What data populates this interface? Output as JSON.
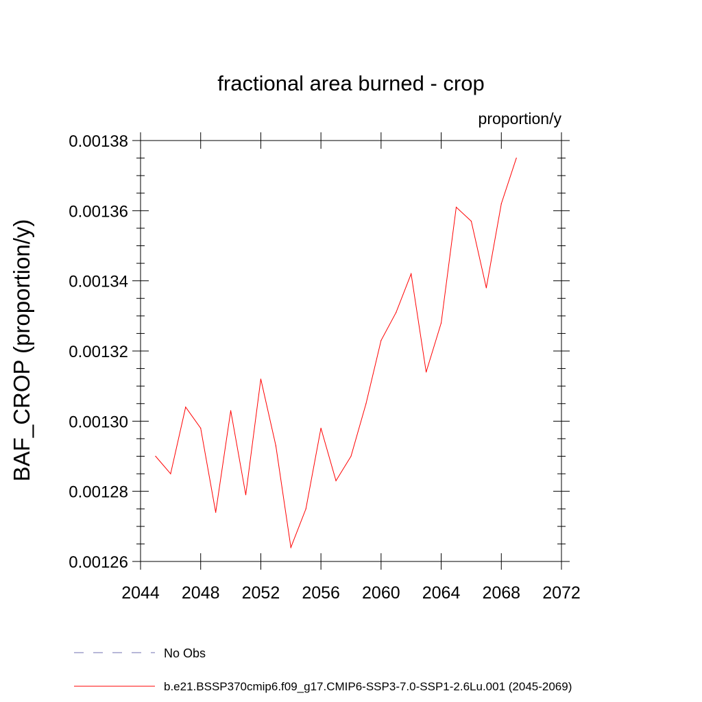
{
  "chart_data": {
    "type": "line",
    "title": "fractional area burned - crop",
    "units_label": "proportion/y",
    "ylabel": "BAF_CROP  (proportion/y)",
    "xlabel": "",
    "xlim": [
      2044,
      2072
    ],
    "ylim": [
      0.00126,
      0.00138
    ],
    "x_ticks": [
      "2044",
      "2048",
      "2052",
      "2056",
      "2060",
      "2064",
      "2068",
      "2072"
    ],
    "y_ticks": [
      "0.00126",
      "0.00128",
      "0.00130",
      "0.00132",
      "0.00134",
      "0.00136",
      "0.00138"
    ],
    "series": [
      {
        "name": "b.e21.BSSP370cmip6.f09_g17.CMIP6-SSP3-7.0-SSP1-2.6Lu.001 (2045-2069)",
        "color": "#ff0000",
        "x": [
          2045,
          2046,
          2047,
          2048,
          2049,
          2050,
          2051,
          2052,
          2053,
          2054,
          2055,
          2056,
          2057,
          2058,
          2059,
          2060,
          2061,
          2062,
          2063,
          2064,
          2065,
          2066,
          2067,
          2068,
          2069
        ],
        "values": [
          0.00129,
          0.001285,
          0.001304,
          0.001298,
          0.001274,
          0.001303,
          0.001279,
          0.001312,
          0.001293,
          0.001264,
          0.001275,
          0.001298,
          0.001283,
          0.00129,
          0.001305,
          0.001323,
          0.001331,
          0.001342,
          0.001314,
          0.001328,
          0.001361,
          0.001357,
          0.001338,
          0.001362,
          0.001375
        ]
      }
    ],
    "legend": {
      "position": "bottom",
      "entries": [
        {
          "label": "No Obs",
          "style": "dashed",
          "color": "#6f6fb0"
        },
        {
          "label": "b.e21.BSSP370cmip6.f09_g17.CMIP6-SSP3-7.0-SSP1-2.6Lu.001 (2045-2069)",
          "style": "solid",
          "color": "#ff0000"
        }
      ]
    }
  }
}
